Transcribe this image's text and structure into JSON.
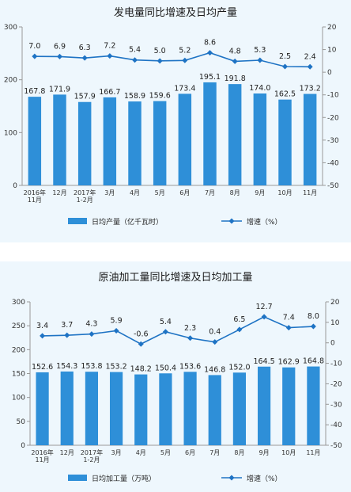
{
  "chart_data": [
    {
      "type": "bar",
      "title": "发电量同比增速及日均产量",
      "categories": [
        [
          "2016年",
          "11月"
        ],
        [
          "12月"
        ],
        [
          "2017年",
          "1-2月"
        ],
        [
          "3月"
        ],
        [
          "4月"
        ],
        [
          "5月"
        ],
        [
          "6月"
        ],
        [
          "7月"
        ],
        [
          "8月"
        ],
        [
          "9月"
        ],
        [
          "10月"
        ],
        [
          "11月"
        ]
      ],
      "series": [
        {
          "name": "日均产量（亿千瓦时）",
          "type": "bar",
          "axis": "left",
          "color": "#2e8fd8",
          "values": [
            167.8,
            171.9,
            157.9,
            166.7,
            158.9,
            159.6,
            173.4,
            195.1,
            191.8,
            174.0,
            162.5,
            173.2
          ],
          "labels": [
            "167.8",
            "171.9",
            "157.9",
            "166.7",
            "158.9",
            "159.6",
            "173.4",
            "195.1",
            "191.8",
            "174.0",
            "162.5",
            "173.2"
          ]
        },
        {
          "name": "增速（%）",
          "type": "line",
          "axis": "right",
          "color": "#1e73c4",
          "values": [
            7.0,
            6.9,
            6.3,
            7.2,
            5.4,
            5.0,
            5.2,
            8.6,
            4.8,
            5.3,
            2.5,
            2.4
          ],
          "labels": [
            "7.0",
            "6.9",
            "6.3",
            "7.2",
            "5.4",
            "5.0",
            "5.2",
            "8.6",
            "4.8",
            "5.3",
            "2.5",
            "2.4"
          ]
        }
      ],
      "ylim_left": [
        0,
        300
      ],
      "yticks_left": [
        "0",
        "100",
        "200",
        "300"
      ],
      "yticks_left_values": [
        0,
        100,
        200,
        300
      ],
      "ylim_right": [
        -50,
        20
      ],
      "yticks_right": [
        "-50",
        "-40",
        "-30",
        "-20",
        "-10",
        "0",
        "10",
        "20"
      ],
      "yticks_right_values": [
        -50,
        -40,
        -30,
        -20,
        -10,
        0,
        10,
        20
      ],
      "legend_position": "bottom"
    },
    {
      "type": "bar",
      "title": "原油加工量同比增速及日均加工量",
      "categories": [
        [
          "2016年",
          "11月"
        ],
        [
          "12月"
        ],
        [
          "2017年",
          "1-2月"
        ],
        [
          "3月"
        ],
        [
          "4月"
        ],
        [
          "5月"
        ],
        [
          "6月"
        ],
        [
          "7月"
        ],
        [
          "8月"
        ],
        [
          "9月"
        ],
        [
          "10月"
        ],
        [
          "11月"
        ]
      ],
      "series": [
        {
          "name": "日均加工量（万吨）",
          "type": "bar",
          "axis": "left",
          "color": "#2e8fd8",
          "values": [
            152.6,
            154.3,
            153.8,
            153.2,
            148.2,
            150.4,
            153.6,
            146.8,
            152.0,
            164.5,
            162.9,
            164.8
          ],
          "labels": [
            "152.6",
            "154.3",
            "153.8",
            "153.2",
            "148.2",
            "150.4",
            "153.6",
            "146.8",
            "152.0",
            "164.5",
            "162.9",
            "164.8"
          ]
        },
        {
          "name": "增速（%）",
          "type": "line",
          "axis": "right",
          "color": "#1e73c4",
          "values": [
            3.4,
            3.7,
            4.3,
            5.9,
            -0.6,
            5.4,
            2.3,
            0.4,
            6.5,
            12.7,
            7.4,
            8.0
          ],
          "labels": [
            "3.4",
            "3.7",
            "4.3",
            "5.9",
            "-0.6",
            "5.4",
            "2.3",
            "0.4",
            "6.5",
            "12.7",
            "7.4",
            "8.0"
          ]
        }
      ],
      "ylim_left": [
        0,
        300
      ],
      "yticks_left": [
        "0",
        "50",
        "100",
        "150",
        "200",
        "250",
        "300"
      ],
      "yticks_left_values": [
        0,
        50,
        100,
        150,
        200,
        250,
        300
      ],
      "ylim_right": [
        -50,
        20
      ],
      "yticks_right": [
        "-50",
        "-40",
        "-30",
        "-20",
        "-10",
        "0",
        "10",
        "20"
      ],
      "yticks_right_values": [
        -50,
        -40,
        -30,
        -20,
        -10,
        0,
        10,
        20
      ],
      "legend_position": "bottom"
    }
  ]
}
